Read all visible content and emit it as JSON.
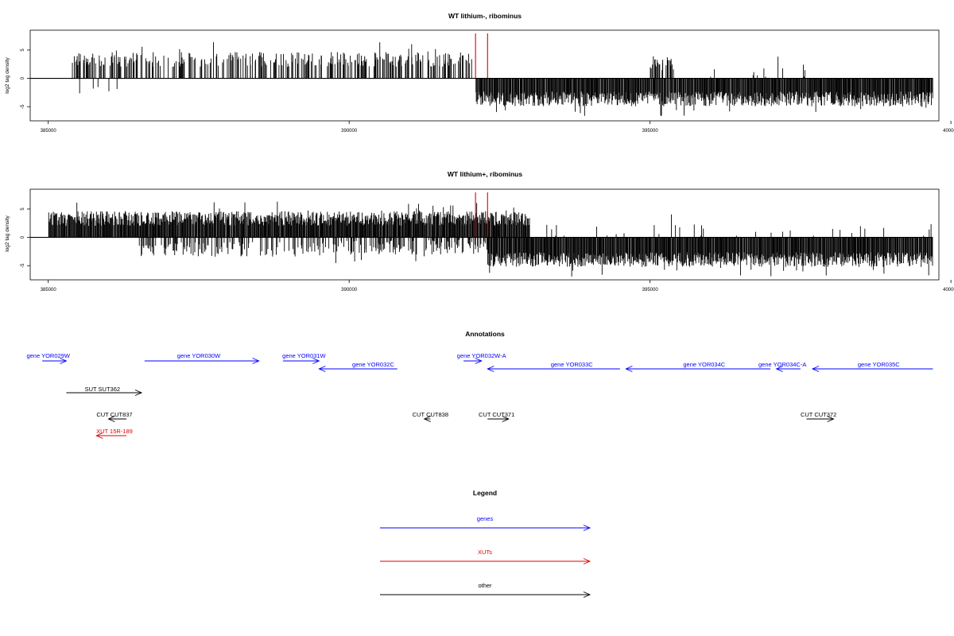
{
  "chart_data": [
    {
      "type": "bar",
      "title": "WT lithium-, ribominus",
      "ylabel": "log2 tag density",
      "xlim": [
        384700,
        399800
      ],
      "ylim": [
        -7.5,
        8.5
      ],
      "xticks": [
        385000,
        390000,
        395000,
        400000
      ],
      "xtick_labels": [
        "385000",
        "390000",
        "395000",
        "400000"
      ],
      "yticks": [
        5,
        0,
        -5
      ],
      "ytick_labels": [
        "5",
        "0",
        "-5"
      ],
      "range_start": 384700,
      "range_end": 399700,
      "markers": [
        {
          "x": 392100,
          "color": "#dd0000"
        },
        {
          "x": 392300,
          "color": "#dd0000"
        }
      ],
      "plus_segments": [
        [
          385400,
          392100,
          0.45,
          3.2
        ],
        [
          395000,
          395400,
          0.4,
          2.5
        ],
        [
          396000,
          397600,
          0.08,
          1.0
        ]
      ],
      "minus_segments": [
        [
          385400,
          386200,
          0.08,
          -2.0
        ],
        [
          392100,
          399700,
          1.0,
          -3.5
        ]
      ],
      "seed": 11
    },
    {
      "type": "bar",
      "title": "WT lithium+, ribominus",
      "ylabel": "log2 tag density",
      "xlim": [
        384700,
        399800
      ],
      "ylim": [
        -7.5,
        8.5
      ],
      "xticks": [
        385000,
        390000,
        395000,
        400000
      ],
      "xtick_labels": [
        "385000",
        "390000",
        "395000",
        "400000"
      ],
      "yticks": [
        5,
        0,
        -5
      ],
      "ytick_labels": [
        "5",
        "0",
        "-5"
      ],
      "range_start": 384700,
      "range_end": 399700,
      "markers": [
        {
          "x": 392100,
          "color": "#dd0000"
        },
        {
          "x": 392300,
          "color": "#dd0000"
        }
      ],
      "plus_segments": [
        [
          385000,
          393000,
          1.0,
          3.2
        ],
        [
          393000,
          399700,
          0.06,
          1.0
        ]
      ],
      "minus_segments": [
        [
          386500,
          389800,
          0.35,
          -2.0
        ],
        [
          389800,
          392300,
          0.5,
          -1.6
        ],
        [
          392300,
          399700,
          1.0,
          -3.8
        ]
      ],
      "seed": 29
    }
  ],
  "annotations": {
    "title": "Annotations",
    "xlim": [
      384700,
      399800
    ],
    "items": [
      {
        "label": "gene YOR029W",
        "start": 384900,
        "end": 385300,
        "dir": "right",
        "row": 0,
        "color": "#0000ff",
        "label_at": 385000
      },
      {
        "label": "gene YOR030W",
        "start": 386600,
        "end": 388500,
        "dir": "right",
        "row": 0,
        "color": "#0000ff",
        "label_at": 387500
      },
      {
        "label": "gene YOR031W",
        "start": 388900,
        "end": 389500,
        "dir": "right",
        "row": 0,
        "color": "#0000ff",
        "label_at": 389250
      },
      {
        "label": "gene YOR032C",
        "start": 389500,
        "end": 390800,
        "dir": "left",
        "row": 1,
        "color": "#0000ff",
        "label_at": 390400
      },
      {
        "label": "gene YOR032W-A",
        "start": 391900,
        "end": 392200,
        "dir": "right",
        "row": 0,
        "color": "#0000ff",
        "label_at": 392200
      },
      {
        "label": "gene YOR033C",
        "start": 392300,
        "end": 394500,
        "dir": "left",
        "row": 1,
        "color": "#0000ff",
        "label_at": 393700
      },
      {
        "label": "gene YOR034C",
        "start": 394600,
        "end": 397000,
        "dir": "left",
        "row": 1,
        "color": "#0000ff",
        "label_at": 395900
      },
      {
        "label": "gene YOR034C-A",
        "start": 397100,
        "end": 397500,
        "dir": "left",
        "row": 1,
        "color": "#0000ff",
        "label_at": 397200
      },
      {
        "label": "gene YOR035C",
        "start": 397700,
        "end": 399700,
        "dir": "left",
        "row": 1,
        "color": "#0000ff",
        "label_at": 398800
      },
      {
        "label": "SUT SUT362",
        "start": 385300,
        "end": 386550,
        "dir": "right",
        "row": 2,
        "color": "#000000",
        "label_at": 385900
      },
      {
        "label": "CUT CUT837",
        "start": 386000,
        "end": 386300,
        "dir": "left",
        "row": 3,
        "color": "#000000",
        "label_at": 386100
      },
      {
        "label": "CUT CUT838",
        "start": 391250,
        "end": 391350,
        "dir": "left",
        "row": 3,
        "color": "#000000",
        "label_at": 391350
      },
      {
        "label": "CUT CUT371",
        "start": 392300,
        "end": 392650,
        "dir": "right",
        "row": 3,
        "color": "#000000",
        "label_at": 392450
      },
      {
        "label": "CUT CUT372",
        "start": 397600,
        "end": 398050,
        "dir": "right",
        "row": 3,
        "color": "#000000",
        "label_at": 397800
      },
      {
        "label": "XUT 15R-189",
        "start": 385800,
        "end": 386300,
        "dir": "left",
        "row": 4,
        "color": "#dd0000",
        "label_at": 386100
      }
    ]
  },
  "legend": {
    "title": "Legend",
    "items": [
      {
        "label": "genes",
        "color": "#0000ff"
      },
      {
        "label": "XUTs",
        "color": "#dd0000"
      },
      {
        "label": "other",
        "color": "#000000"
      }
    ]
  }
}
